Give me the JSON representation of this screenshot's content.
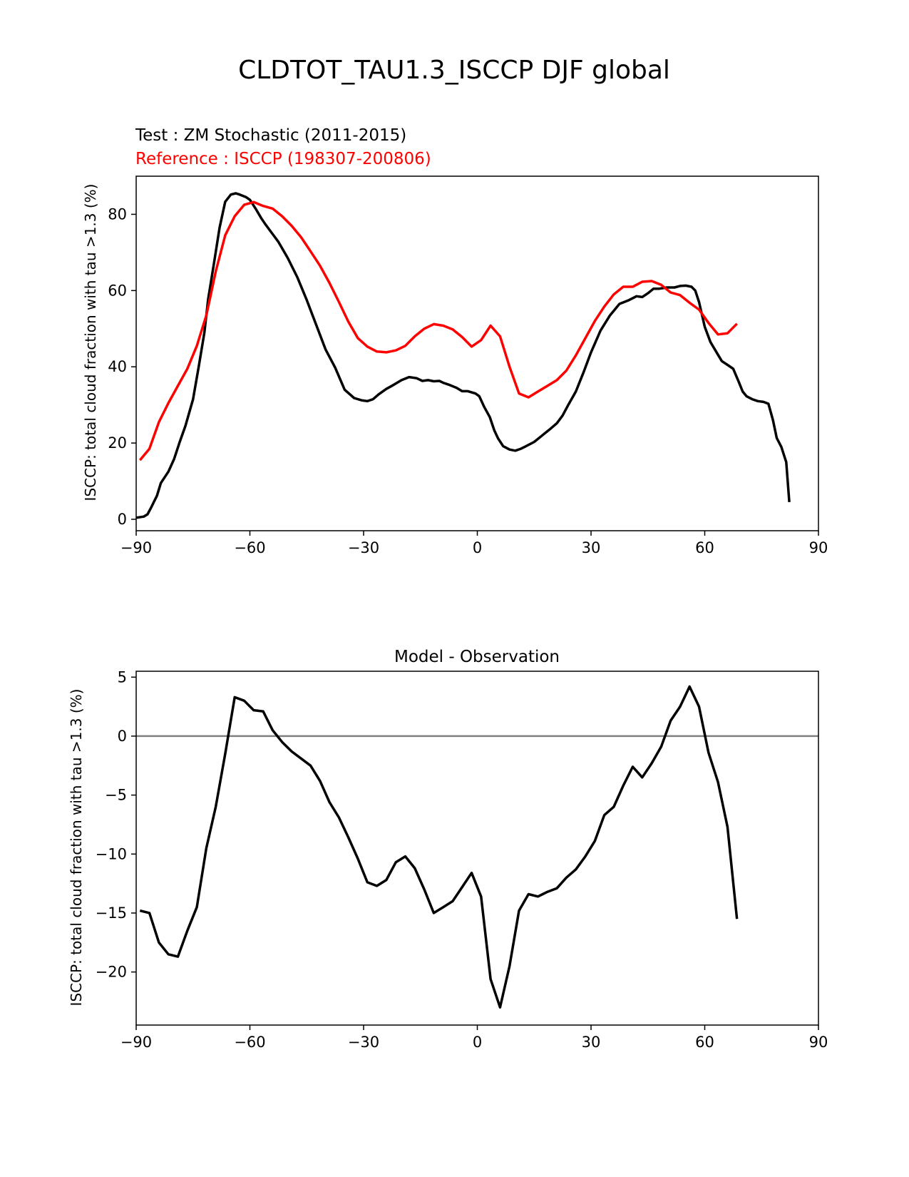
{
  "suptitle": "CLDTOT_TAU1.3_ISCCP DJF global",
  "colors": {
    "test": "#000000",
    "reference": "#ff0000",
    "zero_line": "#808080"
  },
  "chart_data": [
    {
      "type": "line",
      "test_label": "Test : ZM Stochastic (2011-2015)",
      "reference_label": "Reference : ISCCP (198307-200806)",
      "xlabel": "",
      "ylabel": "ISCCP: total cloud fraction with tau >1.3 (%)",
      "xlim": [
        -90,
        90
      ],
      "ylim": [
        -3,
        90
      ],
      "xticks": [
        -90,
        -60,
        -30,
        0,
        30,
        60,
        90
      ],
      "xtick_labels": [
        "−90",
        "−60",
        "−30",
        "0",
        "30",
        "60",
        "90"
      ],
      "yticks": [
        0,
        20,
        40,
        60,
        80
      ],
      "ytick_labels": [
        "0",
        "20",
        "40",
        "60",
        "80"
      ],
      "grid": false,
      "series": [
        {
          "name": "Test : ZM Stochastic (2011-2015)",
          "color": "#000000",
          "x": [
            -90,
            -88,
            -87,
            -86,
            -84.5,
            -83.5,
            -81.5,
            -80,
            -78.5,
            -77,
            -75,
            -73.5,
            -72,
            -71,
            -69.5,
            -68,
            -66.5,
            -65,
            -63.7,
            -62.7,
            -61,
            -60,
            -58.5,
            -57,
            -56,
            -54.5,
            -52.5,
            -50,
            -47.5,
            -45,
            -42.5,
            -40,
            -37.5,
            -35,
            -32.5,
            -30.5,
            -29,
            -27.5,
            -26,
            -24,
            -22,
            -20,
            -18,
            -16,
            -14.5,
            -13,
            -11.5,
            -10,
            -9,
            -7.5,
            -5.5,
            -4,
            -2.5,
            -0.5,
            0.5,
            1.8,
            3.3,
            4.5,
            5.5,
            6.8,
            8.5,
            10,
            11.5,
            12.5,
            15,
            17.5,
            19,
            21,
            22.5,
            24,
            26,
            28,
            30,
            32.5,
            35,
            37.5,
            40,
            42,
            43.5,
            45,
            46.5,
            48,
            50,
            52,
            53.5,
            55,
            56.5,
            57.5,
            58.5,
            60,
            61.5,
            63,
            64.5,
            66,
            67.5,
            69,
            70,
            71,
            72.5,
            74,
            75.5,
            76.8,
            78,
            79,
            80.2,
            81.5,
            82.3
          ],
          "y": [
            0.4,
            0.7,
            1.3,
            3.2,
            6.2,
            9.5,
            12.5,
            15.8,
            20.3,
            24.5,
            31.5,
            40,
            49,
            57.8,
            67,
            76.5,
            83.3,
            85.2,
            85.5,
            85.2,
            84.5,
            83.8,
            81.5,
            79,
            77.5,
            75.5,
            72.8,
            68.5,
            63.5,
            57.5,
            51,
            44.5,
            39.8,
            34,
            31.8,
            31.2,
            31,
            31.5,
            32.8,
            34.2,
            35.3,
            36.5,
            37.3,
            37,
            36.3,
            36.5,
            36.2,
            36.3,
            35.8,
            35.3,
            34.5,
            33.6,
            33.6,
            33,
            32.3,
            29.5,
            26.8,
            23.3,
            21.2,
            19.2,
            18.3,
            18,
            18.5,
            19,
            20.3,
            22.3,
            23.5,
            25.2,
            27.2,
            30,
            33.5,
            38.5,
            43.8,
            49.5,
            53.5,
            56.5,
            57.5,
            58.5,
            58.3,
            59.3,
            60.5,
            60.5,
            60.8,
            60.8,
            61.2,
            61.3,
            61,
            60,
            57,
            50.5,
            46.5,
            44,
            41.5,
            40.5,
            39.5,
            36,
            33.5,
            32.3,
            31.5,
            31,
            30.8,
            30.3,
            26,
            21.3,
            19,
            15,
            4.5
          ]
        },
        {
          "name": "Reference : ISCCP (198307-200806)",
          "color": "#ff0000",
          "x": [
            -89,
            -86.5,
            -84,
            -81.5,
            -79,
            -76.5,
            -74,
            -71.5,
            -69,
            -66.5,
            -64,
            -61.5,
            -59,
            -56.5,
            -54,
            -51.5,
            -49,
            -46.5,
            -44,
            -41.5,
            -39,
            -36.5,
            -34,
            -31.5,
            -29,
            -26.5,
            -24,
            -21.5,
            -19,
            -16.5,
            -14,
            -11.5,
            -9,
            -6.5,
            -4,
            -1.5,
            1,
            3.5,
            6,
            8.5,
            11,
            13.5,
            16,
            18.5,
            21,
            23.5,
            26,
            28.5,
            31,
            33.5,
            36,
            38.5,
            41,
            43.5,
            46,
            48.5,
            51,
            53.5,
            56,
            58.5,
            61,
            63.5,
            66,
            68.5
          ],
          "y": [
            15.5,
            18.5,
            25.5,
            30.5,
            35,
            39.5,
            45.5,
            53.5,
            65,
            74.5,
            79.5,
            82.5,
            83.2,
            82.2,
            81.5,
            79.5,
            77,
            74,
            70.3,
            66.5,
            62,
            57,
            51.8,
            47.5,
            45.3,
            44,
            43.8,
            44.3,
            45.5,
            48,
            50,
            51.2,
            50.8,
            49.8,
            47.8,
            45.3,
            47,
            50.8,
            48,
            40,
            33,
            32,
            33.5,
            35,
            36.5,
            39,
            43,
            47.5,
            52,
            55.8,
            59,
            61,
            61,
            62.3,
            62.5,
            61.5,
            59.5,
            58.8,
            56.8,
            55,
            51.5,
            48.5,
            48.8,
            51.3
          ]
        }
      ]
    },
    {
      "type": "line",
      "title": "Model - Observation",
      "xlabel": "",
      "ylabel": "ISCCP: total cloud fraction with tau >1.3 (%)",
      "xlim": [
        -90,
        90
      ],
      "ylim": [
        -24.5,
        5.5
      ],
      "xticks": [
        -90,
        -60,
        -30,
        0,
        30,
        60,
        90
      ],
      "xtick_labels": [
        "−90",
        "−60",
        "−30",
        "0",
        "30",
        "60",
        "90"
      ],
      "yticks": [
        -20,
        -15,
        -10,
        -5,
        0,
        5
      ],
      "ytick_labels": [
        "−20",
        "−15",
        "−10",
        "−5",
        "0",
        "5"
      ],
      "grid": false,
      "zero_line": true,
      "series": [
        {
          "name": "",
          "color": "#000000",
          "x": [
            -89,
            -86.5,
            -84,
            -81.5,
            -79,
            -76.5,
            -74,
            -71.5,
            -69,
            -66.5,
            -64,
            -61.5,
            -59,
            -56.5,
            -54,
            -51.5,
            -49,
            -46.5,
            -44,
            -41.5,
            -39,
            -36.5,
            -34,
            -31.5,
            -29,
            -26.5,
            -24,
            -21.5,
            -19,
            -16.5,
            -14,
            -11.5,
            -9,
            -6.5,
            -4,
            -1.5,
            1,
            3.5,
            6,
            8.5,
            11,
            13.5,
            16,
            18.5,
            21,
            23.5,
            26,
            28.5,
            31,
            33.5,
            36,
            38.5,
            41,
            43.5,
            46,
            48.5,
            51,
            53.5,
            56,
            58.5,
            61,
            63.5,
            66,
            68.5
          ],
          "y": [
            -14.8,
            -15,
            -17.5,
            -18.5,
            -18.7,
            -16.5,
            -14.5,
            -9.5,
            -6,
            -1.5,
            3.3,
            3,
            2.2,
            2.1,
            0.5,
            -0.5,
            -1.3,
            -1.9,
            -2.5,
            -3.8,
            -5.6,
            -6.9,
            -8.6,
            -10.4,
            -12.4,
            -12.7,
            -12.2,
            -10.7,
            -10.2,
            -11.2,
            -13,
            -15,
            -14.5,
            -14,
            -12.8,
            -11.6,
            -13.6,
            -20.6,
            -23,
            -19.5,
            -14.8,
            -13.4,
            -13.6,
            -13.2,
            -12.9,
            -12,
            -11.3,
            -10.2,
            -8.9,
            -6.7,
            -6,
            -4.2,
            -2.6,
            -3.5,
            -2.3,
            -0.9,
            1.3,
            2.5,
            4.2,
            2.5,
            -1.4,
            -3.9,
            -7.7,
            -15.5
          ]
        }
      ]
    }
  ]
}
